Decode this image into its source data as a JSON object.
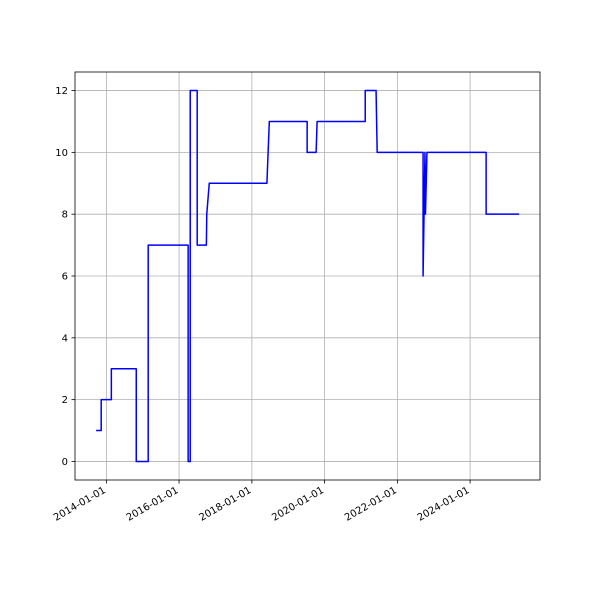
{
  "chart_data": {
    "type": "line",
    "x": [
      "2013-09-20",
      "2013-11-10",
      "2013-11-10",
      "2014-02-20",
      "2014-02-20",
      "2014-10-28",
      "2014-10-28",
      "2015-02-25",
      "2015-02-25",
      "2016-04-01",
      "2016-04-01",
      "2016-04-22",
      "2016-04-22",
      "2016-07-01",
      "2016-07-01",
      "2016-10-01",
      "2016-10-05",
      "2016-10-30",
      "2018-06-01",
      "2018-06-25",
      "2019-07-10",
      "2019-07-10",
      "2019-10-08",
      "2019-10-18",
      "2021-02-12",
      "2021-02-12",
      "2021-06-01",
      "2021-06-12",
      "2022-09-16",
      "2022-09-16",
      "2022-10-05",
      "2022-10-10",
      "2022-10-25",
      "2024-06-10",
      "2024-06-10",
      "2025-05-08"
    ],
    "series": [
      {
        "color": "#0000ff",
        "values": [
          1,
          1,
          2,
          2,
          3,
          3,
          0,
          0,
          7,
          7,
          0,
          0,
          12,
          12,
          7,
          7,
          8,
          9,
          9,
          11,
          11,
          10,
          10,
          11,
          11,
          12,
          12,
          10,
          10,
          6,
          10,
          8,
          10,
          10,
          8,
          8
        ]
      }
    ],
    "xlim": [
      "2013-02-20",
      "2025-12-03"
    ],
    "xticks": [
      "2014-01-01",
      "2016-01-01",
      "2018-01-01",
      "2020-01-01",
      "2022-01-01",
      "2024-01-01"
    ],
    "ylim": [
      -0.6,
      12.6
    ],
    "yticks": [
      0,
      2,
      4,
      6,
      8,
      10,
      12
    ],
    "grid": true
  }
}
